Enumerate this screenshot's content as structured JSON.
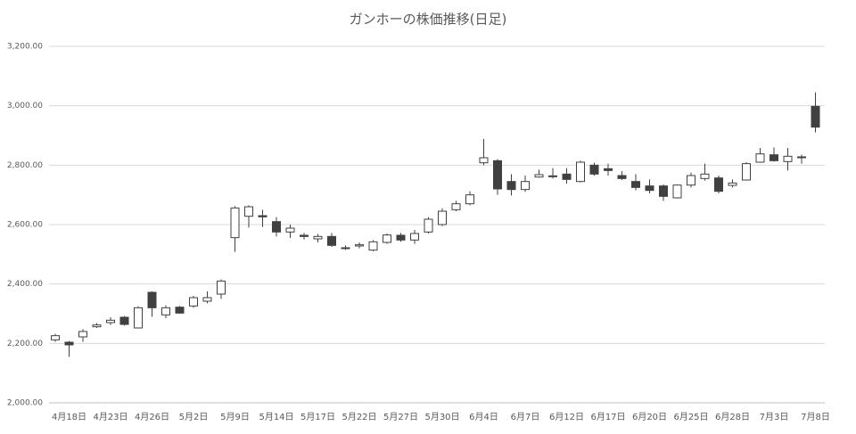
{
  "chart_data": {
    "type": "candlestick",
    "title": "ガンホーの株価推移(日足)",
    "categories": [
      null,
      "4月18日",
      null,
      null,
      "4月23日",
      null,
      null,
      "4月26日",
      null,
      null,
      "5月2日",
      null,
      null,
      "5月9日",
      null,
      null,
      "5月14日",
      null,
      null,
      "5月17日",
      null,
      null,
      "5月22日",
      null,
      null,
      "5月27日",
      null,
      null,
      "5月30日",
      null,
      null,
      "6月4日",
      null,
      null,
      "6月7日",
      null,
      null,
      "6月12日",
      null,
      null,
      "6月17日",
      null,
      null,
      "6月20日",
      null,
      null,
      "6月25日",
      null,
      null,
      "6月28日",
      null,
      null,
      "7月3日",
      null,
      null,
      "7月8日"
    ],
    "open": [
      2212,
      2204,
      2222,
      2256,
      2270,
      2288,
      2252,
      2372,
      2296,
      2322,
      2326,
      2342,
      2366,
      2556,
      2628,
      2630,
      2610,
      2575,
      2564,
      2552,
      2560,
      2520,
      2528,
      2514,
      2540,
      2564,
      2548,
      2575,
      2600,
      2650,
      2670,
      2808,
      2815,
      2745,
      2718,
      2760,
      2764,
      2770,
      2745,
      2800,
      2788,
      2765,
      2745,
      2730,
      2730,
      2690,
      2733,
      2755,
      2757,
      2732,
      2750,
      2810,
      2835,
      2812,
      2828,
      2998
    ],
    "high": [
      2232,
      2208,
      2248,
      2268,
      2288,
      2292,
      2325,
      2375,
      2328,
      2326,
      2360,
      2375,
      2415,
      2662,
      2665,
      2650,
      2625,
      2600,
      2572,
      2568,
      2572,
      2530,
      2540,
      2548,
      2570,
      2572,
      2582,
      2625,
      2655,
      2680,
      2712,
      2888,
      2820,
      2770,
      2765,
      2785,
      2790,
      2790,
      2815,
      2808,
      2805,
      2780,
      2770,
      2752,
      2735,
      2735,
      2775,
      2805,
      2765,
      2752,
      2810,
      2858,
      2860,
      2858,
      2835,
      3045
    ],
    "low": [
      2205,
      2155,
      2205,
      2252,
      2262,
      2260,
      2250,
      2290,
      2285,
      2300,
      2320,
      2335,
      2350,
      2508,
      2590,
      2592,
      2560,
      2555,
      2550,
      2540,
      2525,
      2515,
      2520,
      2510,
      2535,
      2542,
      2535,
      2570,
      2595,
      2645,
      2665,
      2800,
      2700,
      2698,
      2710,
      2758,
      2755,
      2738,
      2742,
      2765,
      2765,
      2750,
      2715,
      2705,
      2680,
      2688,
      2725,
      2748,
      2705,
      2725,
      2748,
      2808,
      2812,
      2782,
      2805,
      2910
    ],
    "close": [
      2226,
      2195,
      2240,
      2262,
      2278,
      2264,
      2320,
      2320,
      2320,
      2302,
      2354,
      2354,
      2410,
      2656,
      2660,
      2626,
      2575,
      2588,
      2560,
      2560,
      2530,
      2522,
      2532,
      2542,
      2565,
      2548,
      2570,
      2618,
      2645,
      2670,
      2700,
      2825,
      2720,
      2718,
      2745,
      2768,
      2762,
      2752,
      2810,
      2770,
      2782,
      2755,
      2725,
      2715,
      2695,
      2733,
      2765,
      2770,
      2712,
      2740,
      2805,
      2838,
      2815,
      2830,
      2826,
      2928
    ],
    "up_color": "#ffffff",
    "down_color": "#404040",
    "edge_color": "#404040",
    "ylim": [
      2000,
      3200
    ],
    "yticks": [
      {
        "value": 2000,
        "label": "2,000.00"
      },
      {
        "value": 2200,
        "label": "2,200.00"
      },
      {
        "value": 2400,
        "label": "2,400.00"
      },
      {
        "value": 2600,
        "label": "2,600.00"
      },
      {
        "value": 2800,
        "label": "2,800.00"
      },
      {
        "value": 3000,
        "label": "3,000.00"
      },
      {
        "value": 3200,
        "label": "3,200.00"
      }
    ],
    "grid": true
  }
}
